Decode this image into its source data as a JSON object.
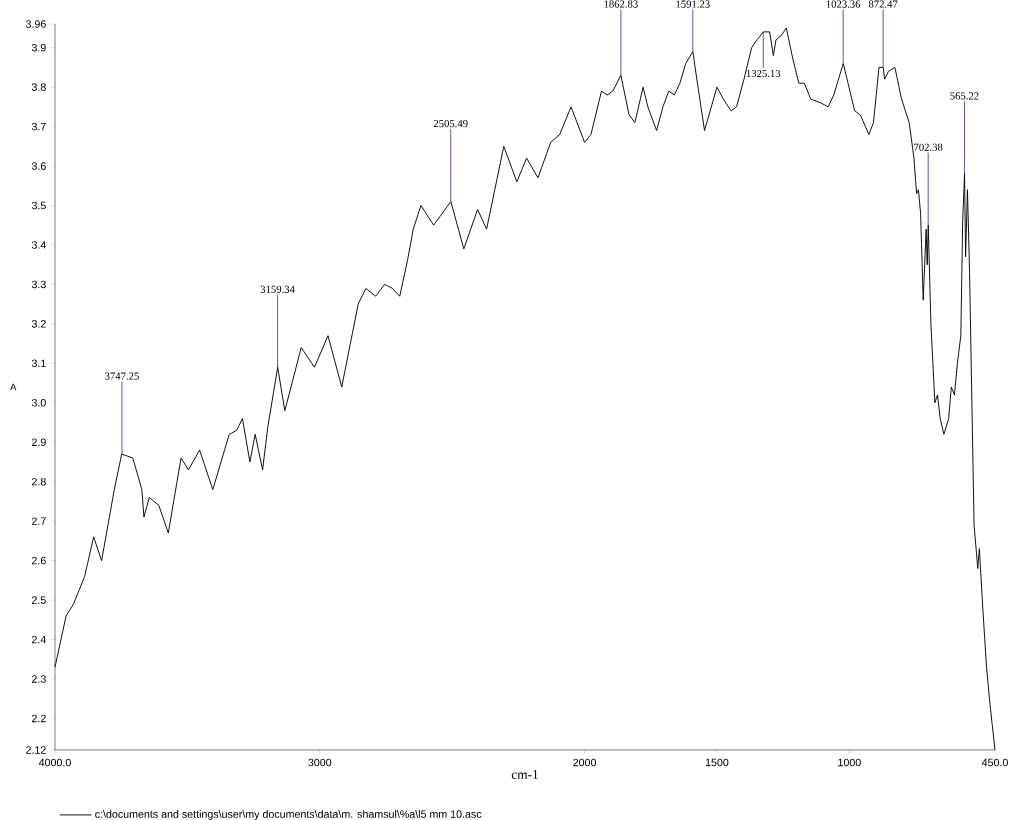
{
  "chart_data": {
    "type": "line",
    "xlabel": "cm-1",
    "ylabel": "A",
    "xlim": [
      4000,
      450
    ],
    "ylim": [
      2.12,
      3.96
    ],
    "xticks": [
      {
        "value": 4000,
        "label": "4000.0"
      },
      3000,
      2000,
      1500,
      1000,
      {
        "value": 450,
        "label": "450.0"
      }
    ],
    "yticks": [
      2.12,
      2.2,
      2.3,
      2.4,
      2.5,
      2.6,
      2.7,
      2.8,
      2.9,
      {
        "value": 3,
        "label": "3.0"
      },
      3.1,
      3.2,
      3.3,
      3.4,
      3.5,
      3.6,
      3.7,
      3.8,
      3.9,
      3.96
    ],
    "legend": "bottom",
    "x": [
      4000,
      3958,
      3930,
      3888,
      3854,
      3824,
      3776,
      3748,
      3706,
      3672,
      3664,
      3644,
      3608,
      3572,
      3524,
      3496,
      3454,
      3404,
      3342,
      3314,
      3292,
      3264,
      3244,
      3216,
      3196,
      3159,
      3132,
      3070,
      3020,
      2969,
      2917,
      2855,
      2826,
      2789,
      2755,
      2726,
      2698,
      2669,
      2647,
      2618,
      2570,
      2505,
      2456,
      2404,
      2370,
      2305,
      2256,
      2219,
      2176,
      2128,
      2094,
      2051,
      2000,
      1976,
      1936,
      1915,
      1893,
      1863,
      1832,
      1810,
      1779,
      1761,
      1728,
      1704,
      1682,
      1661,
      1640,
      1618,
      1591,
      1576,
      1547,
      1500,
      1476,
      1447,
      1426,
      1398,
      1369,
      1348,
      1325,
      1301,
      1287,
      1277,
      1258,
      1238,
      1213,
      1191,
      1170,
      1146,
      1108,
      1080,
      1059,
      1023,
      980,
      959,
      926,
      909,
      888,
      872,
      867,
      852,
      828,
      803,
      774,
      756,
      746,
      739,
      731,
      721,
      710,
      706,
      702,
      692,
      677,
      667,
      657,
      643,
      625,
      615,
      603,
      592,
      579,
      572,
      565,
      561,
      554,
      546,
      529,
      515,
      509,
      497,
      482,
      468,
      450
    ],
    "series": [
      {
        "name": "c:\\documents and settings\\user\\my documents\\data\\m. shamsul\\%a\\l5 mm 10.asc",
        "color": "#000000",
        "values": [
          2.33,
          2.46,
          2.49,
          2.56,
          2.66,
          2.6,
          2.78,
          2.87,
          2.86,
          2.78,
          2.71,
          2.76,
          2.74,
          2.67,
          2.86,
          2.83,
          2.88,
          2.78,
          2.92,
          2.93,
          2.96,
          2.85,
          2.92,
          2.83,
          2.94,
          3.09,
          2.98,
          3.14,
          3.09,
          3.17,
          3.04,
          3.25,
          3.29,
          3.27,
          3.3,
          3.29,
          3.27,
          3.36,
          3.44,
          3.5,
          3.45,
          3.51,
          3.39,
          3.49,
          3.44,
          3.65,
          3.56,
          3.62,
          3.57,
          3.66,
          3.68,
          3.75,
          3.66,
          3.68,
          3.79,
          3.78,
          3.79,
          3.83,
          3.73,
          3.71,
          3.8,
          3.75,
          3.69,
          3.75,
          3.79,
          3.78,
          3.81,
          3.86,
          3.89,
          3.82,
          3.69,
          3.8,
          3.77,
          3.74,
          3.75,
          3.82,
          3.9,
          3.92,
          3.94,
          3.94,
          3.88,
          3.92,
          3.93,
          3.95,
          3.87,
          3.81,
          3.81,
          3.77,
          3.76,
          3.75,
          3.78,
          3.86,
          3.74,
          3.73,
          3.68,
          3.71,
          3.85,
          3.85,
          3.82,
          3.84,
          3.85,
          3.77,
          3.71,
          3.62,
          3.53,
          3.54,
          3.48,
          3.26,
          3.44,
          3.35,
          3.45,
          3.2,
          3.0,
          3.02,
          2.96,
          2.92,
          2.96,
          3.04,
          3.02,
          3.1,
          3.17,
          3.46,
          3.58,
          3.37,
          3.54,
          3.33,
          2.69,
          2.58,
          2.63,
          2.49,
          2.33,
          2.23,
          2.12
        ]
      }
    ],
    "annotations": [
      {
        "text": "3747.25",
        "x": 3747.25,
        "y": 2.87
      },
      {
        "text": "3159.34",
        "x": 3159.34,
        "y": 3.09
      },
      {
        "text": "2505.49",
        "x": 2505.49,
        "y": 3.51
      },
      {
        "text": "1862.83",
        "x": 1862.83,
        "y": 3.83
      },
      {
        "text": "1591.23",
        "x": 1591.23,
        "y": 3.89
      },
      {
        "text": "1325.13",
        "x": 1325.13,
        "y": 3.94
      },
      {
        "text": "1023.36",
        "x": 1023.36,
        "y": 3.86
      },
      {
        "text": "872.47",
        "x": 872.47,
        "y": 3.85
      },
      {
        "text": "702.38",
        "x": 702.38,
        "y": 3.45
      },
      {
        "text": "565.22",
        "x": 565.22,
        "y": 3.58
      }
    ]
  }
}
